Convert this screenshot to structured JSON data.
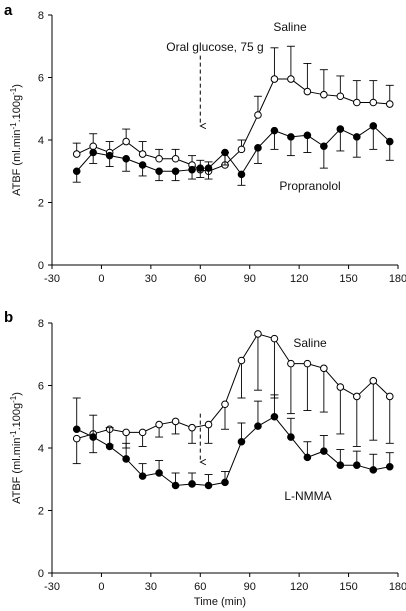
{
  "chart_data": [
    {
      "type": "line",
      "panel": "a",
      "ylabel": "ATBF (ml.min-1.100g-1)",
      "xlabel": "",
      "xlim": [
        -30,
        180
      ],
      "ylim": [
        0,
        8
      ],
      "xticks": [
        -30,
        0,
        30,
        60,
        90,
        120,
        150,
        180
      ],
      "yticks": [
        0,
        2,
        4,
        6,
        8
      ],
      "annotations": [
        {
          "text": "Oral glucose, 75 g",
          "x": 60,
          "arrow": true
        }
      ],
      "series": [
        {
          "name": "Saline",
          "marker": "open-circle",
          "x": [
            -15,
            -5,
            5,
            15,
            25,
            35,
            45,
            55,
            60,
            65,
            75,
            85,
            95,
            105,
            115,
            125,
            135,
            145,
            155,
            165,
            175
          ],
          "y": [
            3.55,
            3.8,
            3.6,
            3.95,
            3.55,
            3.4,
            3.4,
            3.2,
            3.05,
            3.0,
            3.2,
            3.7,
            4.8,
            5.95,
            5.95,
            5.55,
            5.45,
            5.4,
            5.2,
            5.2,
            5.15
          ],
          "err": [
            0.35,
            0.4,
            0.35,
            0.4,
            0.4,
            0.3,
            0.3,
            0.3,
            0.3,
            0.3,
            0.4,
            0.3,
            0.6,
            1.0,
            1.05,
            0.9,
            0.8,
            0.65,
            0.7,
            0.7,
            0.6
          ],
          "err_dir": "up"
        },
        {
          "name": "Propranolol",
          "marker": "filled-circle",
          "x": [
            -15,
            -5,
            5,
            15,
            25,
            35,
            45,
            55,
            60,
            65,
            75,
            85,
            95,
            105,
            115,
            125,
            135,
            145,
            155,
            165,
            175
          ],
          "y": [
            3.0,
            3.6,
            3.5,
            3.4,
            3.2,
            3.0,
            3.0,
            3.05,
            3.1,
            3.1,
            3.6,
            2.9,
            3.75,
            4.3,
            4.1,
            4.15,
            3.8,
            4.35,
            4.1,
            4.45,
            3.95
          ],
          "err": [
            0.35,
            0.35,
            0.35,
            0.4,
            0.35,
            0.3,
            0.3,
            0.3,
            0.3,
            0.35,
            0.4,
            0.35,
            0.5,
            0.6,
            0.6,
            0.55,
            0.7,
            0.7,
            0.65,
            0.75,
            0.6
          ],
          "err_dir": "down"
        }
      ]
    },
    {
      "type": "line",
      "panel": "b",
      "ylabel": "ATBF (ml.min-1.100g-1)",
      "xlabel": "Time (min)",
      "xlim": [
        -30,
        180
      ],
      "ylim": [
        0,
        8
      ],
      "xticks": [
        -30,
        0,
        30,
        60,
        90,
        120,
        150,
        180
      ],
      "yticks": [
        0,
        2,
        4,
        6,
        8
      ],
      "annotations": [
        {
          "text": "",
          "x": 60,
          "arrow": true
        }
      ],
      "series": [
        {
          "name": "Saline",
          "marker": "open-circle",
          "x": [
            -15,
            -5,
            5,
            15,
            25,
            35,
            45,
            55,
            65,
            75,
            85,
            95,
            105,
            115,
            125,
            135,
            145,
            155,
            165,
            175
          ],
          "y": [
            4.3,
            4.45,
            4.6,
            4.5,
            4.5,
            4.75,
            4.85,
            4.65,
            4.75,
            5.4,
            6.8,
            7.65,
            7.5,
            6.7,
            6.7,
            6.55,
            5.95,
            5.65,
            6.15,
            5.65
          ],
          "err": [
            0.8,
            0.6,
            0.5,
            0.5,
            0.45,
            0.4,
            0.4,
            0.5,
            0.6,
            0.8,
            1.2,
            1.8,
            1.9,
            1.6,
            1.5,
            1.4,
            1.5,
            1.6,
            1.9,
            1.5
          ],
          "err_dir": "down"
        },
        {
          "name": "L-NMMA",
          "marker": "filled-circle",
          "x": [
            -15,
            -5,
            5,
            15,
            25,
            35,
            45,
            55,
            65,
            75,
            85,
            95,
            105,
            115,
            125,
            135,
            145,
            155,
            165,
            175
          ],
          "y": [
            4.6,
            4.35,
            4.05,
            3.65,
            3.1,
            3.2,
            2.8,
            2.85,
            2.8,
            2.9,
            4.2,
            4.7,
            5.0,
            4.35,
            3.7,
            3.9,
            3.45,
            3.45,
            3.3,
            3.4
          ],
          "err": [
            1.0,
            0.7,
            0.6,
            0.5,
            0.4,
            0.4,
            0.4,
            0.35,
            0.35,
            0.35,
            0.6,
            0.8,
            0.7,
            0.6,
            0.5,
            0.5,
            0.5,
            0.45,
            0.5,
            0.45
          ],
          "err_dir": "up"
        }
      ]
    }
  ]
}
